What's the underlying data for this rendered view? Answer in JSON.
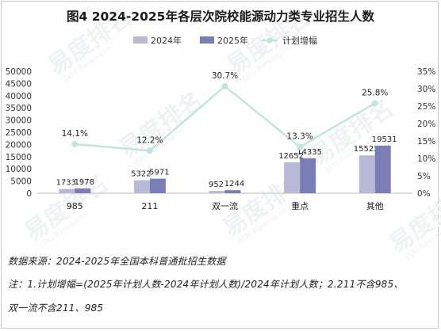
{
  "chart_data": {
    "type": "bar+line",
    "title": "图4 2024-2025年各层次院校能源动力类专业招生人数",
    "categories": [
      "985",
      "211",
      "双一流",
      "重点",
      "其他"
    ],
    "series": [
      {
        "name": "2024年",
        "type": "bar",
        "axis": "left",
        "color": "#b7b9d6",
        "values": [
          1733,
          5322,
          952,
          12652,
          15522
        ]
      },
      {
        "name": "2025年",
        "type": "bar",
        "axis": "left",
        "color": "#7b7db8",
        "values": [
          1978,
          5971,
          1244,
          14335,
          19531
        ]
      },
      {
        "name": "计划增幅",
        "type": "line",
        "axis": "right",
        "color": "#bfe5e2",
        "values": [
          14.1,
          12.2,
          30.7,
          13.3,
          25.8
        ],
        "labels": [
          "14.1%",
          "12.2%",
          "30.7%",
          "13.3%",
          "25.8%"
        ]
      }
    ],
    "left_axis": {
      "min": 0,
      "max": 50000,
      "step": 5000,
      "ticks": [
        "0",
        "5000",
        "10000",
        "15000",
        "20000",
        "25000",
        "30000",
        "35000",
        "40000",
        "45000",
        "50000"
      ]
    },
    "right_axis": {
      "min": 0,
      "max": 35,
      "step": 5,
      "ticks": [
        "0%",
        "5%",
        "10%",
        "15%",
        "20%",
        "25%",
        "30%",
        "35%"
      ]
    },
    "grid": false,
    "legend_position": "top"
  },
  "watermark": {
    "text": "易度排名",
    "sub": "EDU Ranking.cn"
  },
  "notes": {
    "source": "数据来源：2024-2025年全国本科普通批招生数据",
    "note_line1": "注：1.计划增幅=(2025年计划人数-2024年计划人数)/2024年计划人数；2.211不含985、",
    "note_line2": "双一流不含211、985"
  }
}
